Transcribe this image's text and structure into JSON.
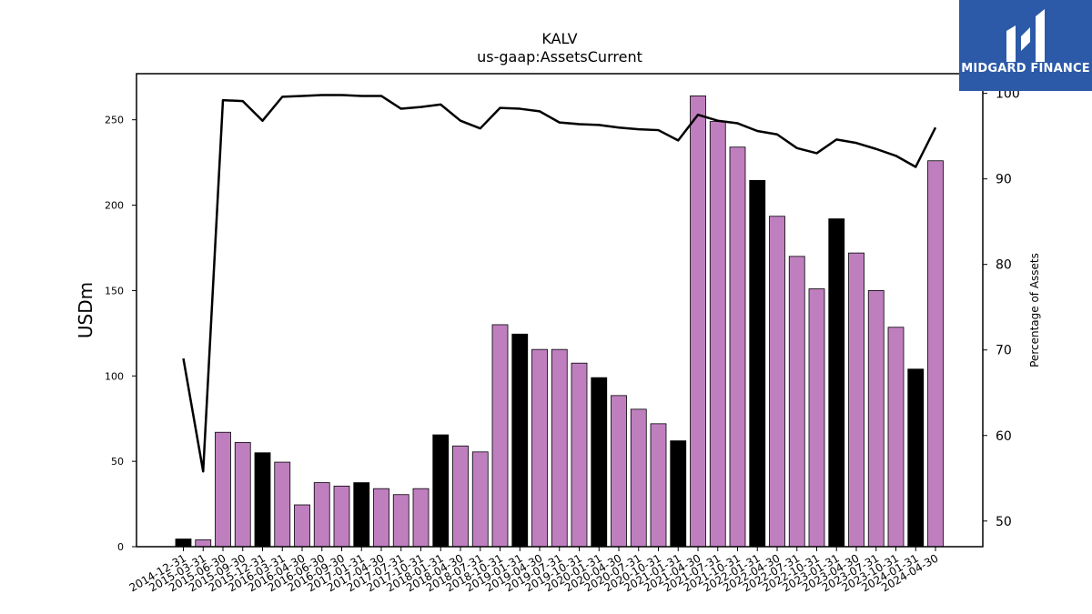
{
  "brand": {
    "name": "MIDGARD FINANCE",
    "color": "#2c5aa8"
  },
  "chart_data": {
    "type": "bar",
    "title": "KALV",
    "subtitle": "us-gaap:AssetsCurrent",
    "ylabel": "USDm",
    "y2label": "Percentage of Assets",
    "ylim": [
      0,
      277
    ],
    "y2lim": [
      47,
      102.3
    ],
    "yticks": [
      0,
      50,
      100,
      150,
      200,
      250
    ],
    "y2ticks": [
      50,
      60,
      70,
      80,
      90,
      100
    ],
    "categories": [
      "2014-12-31",
      "2015-03-31",
      "2015-06-30",
      "2015-09-30",
      "2015-12-31",
      "2016-03-31",
      "2016-04-30",
      "2016-06-30",
      "2016-09-30",
      "2017-01-31",
      "2017-04-30",
      "2017-07-31",
      "2017-10-31",
      "2018-01-31",
      "2018-04-30",
      "2018-07-31",
      "2018-10-31",
      "2019-01-31",
      "2019-04-30",
      "2019-07-31",
      "2019-10-31",
      "2020-01-31",
      "2020-04-30",
      "2020-07-31",
      "2020-10-31",
      "2021-01-31",
      "2021-04-30",
      "2021-07-31",
      "2021-10-31",
      "2022-01-31",
      "2022-04-30",
      "2022-07-31",
      "2022-10-31",
      "2023-01-31",
      "2023-04-30",
      "2023-07-31",
      "2023-10-31",
      "2024-01-31",
      "2024-04-30"
    ],
    "series": [
      {
        "kind": "bar",
        "values": [
          4.5,
          4,
          67,
          61,
          55,
          49.5,
          24.5,
          37.5,
          35.5,
          37.5,
          34,
          30.5,
          34,
          65.5,
          59,
          55.5,
          130,
          124.5,
          115.5,
          115.5,
          107.5,
          99,
          88.5,
          80.5,
          72,
          62,
          264,
          249,
          234,
          214.5,
          193.5,
          170,
          151,
          192,
          172,
          150,
          128.5,
          104,
          226
        ],
        "fiscal_year_end": [
          true,
          false,
          false,
          false,
          true,
          false,
          false,
          false,
          false,
          true,
          false,
          false,
          false,
          true,
          false,
          false,
          false,
          true,
          false,
          false,
          false,
          true,
          false,
          false,
          false,
          true,
          false,
          false,
          false,
          true,
          false,
          false,
          false,
          true,
          false,
          false,
          false,
          true,
          false
        ]
      },
      {
        "kind": "line",
        "axis": "right",
        "values": [
          69,
          55.8,
          99.2,
          99.1,
          96.8,
          99.6,
          99.7,
          99.8,
          99.8,
          99.7,
          99.7,
          98.2,
          98.4,
          98.7,
          96.8,
          95.9,
          98.3,
          98.2,
          97.9,
          96.6,
          96.4,
          96.3,
          96,
          95.8,
          95.7,
          94.5,
          97.5,
          96.8,
          96.5,
          95.6,
          95.2,
          93.6,
          93,
          94.6,
          94.2,
          93.5,
          92.7,
          91.4,
          96
        ]
      }
    ],
    "colors": {
      "bar": "#bf7fbf",
      "bar_fiscal_year_end": "#000000",
      "line": "#000000"
    },
    "grid": false,
    "legend": "none"
  }
}
